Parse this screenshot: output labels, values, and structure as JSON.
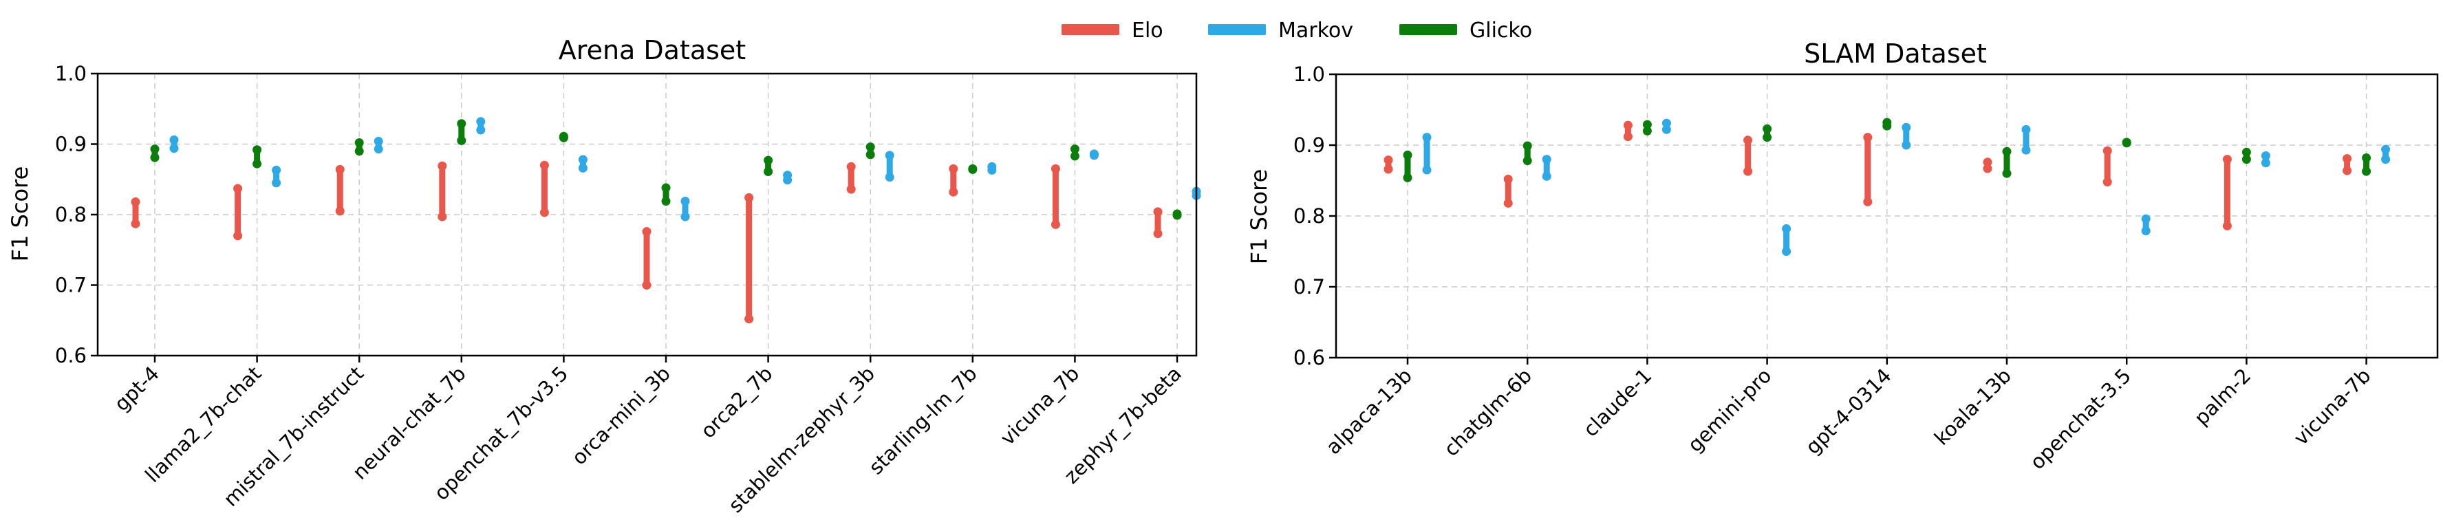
{
  "legend": [
    {
      "name": "Elo",
      "color": "#e8574a"
    },
    {
      "name": "Markov",
      "color": "#2fa8e6"
    },
    {
      "name": "Glicko",
      "color": "#0b7d0b"
    }
  ],
  "chart_data": [
    {
      "type": "range-dot",
      "title": "Arena Dataset",
      "xlabel": "",
      "ylabel": "F1 Score",
      "ylim": [
        0.6,
        1.0
      ],
      "yticks": [
        "0.6",
        "0.7",
        "0.8",
        "0.9",
        "1.0"
      ],
      "grid": true,
      "categories": [
        "gpt-4",
        "llama2_7b-chat",
        "mistral_7b-instruct",
        "neural-chat_7b",
        "openchat_7b-v3.5",
        "orca-mini_3b",
        "orca2_7b",
        "stablelm-zephyr_3b",
        "starling-lm_7b",
        "vicuna_7b",
        "zephyr_7b-beta"
      ],
      "series": [
        {
          "name": "Elo",
          "ranges": [
            [
              0.787,
              0.818
            ],
            [
              0.77,
              0.837
            ],
            [
              0.805,
              0.864
            ],
            [
              0.797,
              0.869
            ],
            [
              0.803,
              0.87
            ],
            [
              0.7,
              0.776
            ],
            [
              0.652,
              0.824
            ],
            [
              0.836,
              0.868
            ],
            [
              0.832,
              0.865
            ],
            [
              0.786,
              0.865
            ],
            [
              0.773,
              0.804
            ]
          ]
        },
        {
          "name": "Glicko",
          "ranges": [
            [
              0.881,
              0.893
            ],
            [
              0.872,
              0.892
            ],
            [
              0.89,
              0.902
            ],
            [
              0.905,
              0.929
            ],
            [
              0.909,
              0.911
            ],
            [
              0.819,
              0.838
            ],
            [
              0.861,
              0.877
            ],
            [
              0.885,
              0.896
            ],
            [
              0.864,
              0.865
            ],
            [
              0.883,
              0.893
            ],
            [
              0.799,
              0.801
            ]
          ]
        },
        {
          "name": "Markov",
          "ranges": [
            [
              0.894,
              0.906
            ],
            [
              0.845,
              0.863
            ],
            [
              0.893,
              0.904
            ],
            [
              0.92,
              0.932
            ],
            [
              0.866,
              0.878
            ],
            [
              0.797,
              0.819
            ],
            [
              0.849,
              0.856
            ],
            [
              0.853,
              0.884
            ],
            [
              0.863,
              0.868
            ],
            [
              0.884,
              0.886
            ],
            [
              0.827,
              0.833
            ]
          ]
        }
      ]
    },
    {
      "type": "range-dot",
      "title": "SLAM Dataset",
      "xlabel": "",
      "ylabel": "F1 Score",
      "ylim": [
        0.6,
        1.0
      ],
      "yticks": [
        "0.6",
        "0.7",
        "0.8",
        "0.9",
        "1.0"
      ],
      "grid": true,
      "categories": [
        "alpaca-13b",
        "chatglm-6b",
        "claude-1",
        "gemini-pro",
        "gpt-4-0314",
        "koala-13b",
        "openchat-3.5",
        "palm-2",
        "vicuna-7b"
      ],
      "series": [
        {
          "name": "Elo",
          "ranges": [
            [
              0.866,
              0.879
            ],
            [
              0.818,
              0.852
            ],
            [
              0.912,
              0.928
            ],
            [
              0.863,
              0.907
            ],
            [
              0.82,
              0.911
            ],
            [
              0.867,
              0.876
            ],
            [
              0.848,
              0.892
            ],
            [
              0.786,
              0.88
            ],
            [
              0.864,
              0.881
            ]
          ]
        },
        {
          "name": "Glicko",
          "ranges": [
            [
              0.854,
              0.886
            ],
            [
              0.878,
              0.899
            ],
            [
              0.92,
              0.929
            ],
            [
              0.911,
              0.923
            ],
            [
              0.927,
              0.932
            ],
            [
              0.86,
              0.891
            ],
            [
              0.903,
              0.904
            ],
            [
              0.88,
              0.89
            ],
            [
              0.863,
              0.882
            ]
          ]
        },
        {
          "name": "Markov",
          "ranges": [
            [
              0.865,
              0.911
            ],
            [
              0.856,
              0.88
            ],
            [
              0.922,
              0.931
            ],
            [
              0.75,
              0.782
            ],
            [
              0.9,
              0.925
            ],
            [
              0.893,
              0.922
            ],
            [
              0.779,
              0.796
            ],
            [
              0.875,
              0.885
            ],
            [
              0.88,
              0.894
            ]
          ]
        }
      ]
    }
  ]
}
